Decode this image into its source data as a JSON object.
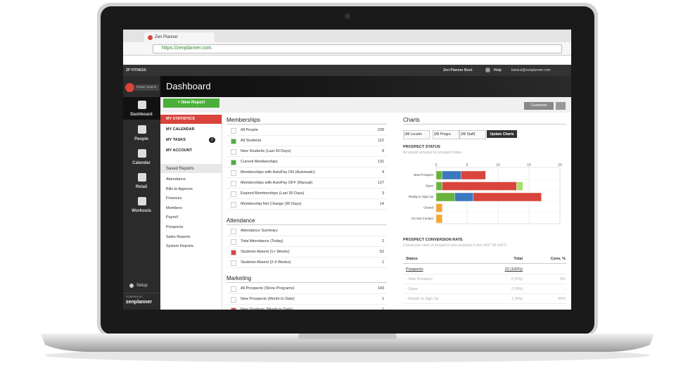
{
  "browser": {
    "tab": "Zen Planner",
    "url": "https://zenplanner.com."
  },
  "topbar": {
    "brand": "ZP FITNESS",
    "boot": "Zen Planner Boot",
    "help": "Help",
    "user": "kinnick@zenplanner.com"
  },
  "sidebar": {
    "search": "Power Search",
    "items": [
      "Dashboard",
      "People",
      "Calendar",
      "Retail",
      "Workouts"
    ],
    "setup": "Setup",
    "powered": "POWERED BY",
    "logo": "zenplanner"
  },
  "header": {
    "title": "Dashboard",
    "new_report": "+ New Report",
    "customize": "Customize"
  },
  "nav": {
    "items": [
      "MY STATISTICS",
      "MY CALENDAR",
      "MY TASKS",
      "MY ACCOUNT"
    ],
    "tasks_badge": 2,
    "saved_title": "Saved Reports",
    "saved": [
      "Attendance",
      "Bills to Approve",
      "Finances",
      "Members",
      "Payroll",
      "Prospects",
      "Sales Reports",
      "System Reports"
    ]
  },
  "sections": [
    {
      "title": "Memberships",
      "rows": [
        {
          "label": "All People",
          "count": 228
        },
        {
          "label": "All Students",
          "count": 112,
          "color": "#4caf3a"
        },
        {
          "label": "New Students (Last 30 Days)",
          "count": 8
        },
        {
          "label": "Current Memberships",
          "count": 131,
          "color": "#4caf3a"
        },
        {
          "label": "Memberships with AutoPay ON (Automatic)",
          "count": 4
        },
        {
          "label": "Memberships with AutoPay OFF (Manual)",
          "count": 127
        },
        {
          "label": "Expired Memberships (Last 30 Days)",
          "count": 3
        },
        {
          "label": "Membership Net Change (90 Days)",
          "count": 14
        }
      ]
    },
    {
      "title": "Attendance",
      "rows": [
        {
          "label": "Attendance Summary"
        },
        {
          "label": "Total Attendance (Today)",
          "count": 2
        },
        {
          "label": "Students Absent (1+ Weeks)",
          "count": 52,
          "color": "#d9443c"
        },
        {
          "label": "Students Absent (2-4 Weeks)",
          "count": 1
        }
      ]
    },
    {
      "title": "Marketing",
      "rows": [
        {
          "label": "All Prospects (Show Programs)",
          "count": 143
        },
        {
          "label": "New Prospects (Month to Date)",
          "count": 1
        },
        {
          "label": "New Students (Month to Date)",
          "count": 1,
          "color": "#d9443c"
        }
      ]
    }
  ],
  "charts": {
    "title": "Charts",
    "filters": [
      "(All Locatio",
      "(All Progra",
      "(All Staff)"
    ],
    "update": "Update Charts"
  },
  "chart_data": {
    "type": "bar",
    "orientation": "horizontal",
    "stacked": true,
    "title": "PROSPECT STATUS",
    "subtitle": "All people grouped by prospect status",
    "categories": [
      "New Prospect",
      "Open",
      "Ready to Sign Up",
      "Closed",
      "Do Not Contact"
    ],
    "series": [
      {
        "color": "#6ab23c",
        "values": [
          1,
          1,
          3,
          null,
          null
        ]
      },
      {
        "color": "#3a78c0",
        "values": [
          3,
          null,
          3,
          null,
          null
        ]
      },
      {
        "color": "#d9443c",
        "values": [
          4,
          12,
          11,
          null,
          null
        ]
      },
      {
        "color": "#a8e06a",
        "values": [
          null,
          1,
          null,
          null,
          null
        ]
      },
      {
        "color": "#f2a634",
        "values": [
          null,
          null,
          null,
          1,
          1
        ]
      }
    ],
    "xlim": [
      0,
      20
    ],
    "xticks": [
      0,
      5,
      10,
      15,
      20
    ],
    "grid": true
  },
  "conversion": {
    "title": "PROSPECT CONVERSION RATE",
    "subtitle": "Conversion rates of prospects who enquired in the LAST 90 DAYS",
    "columns": [
      "Status",
      "Total",
      "Conv. %"
    ],
    "rows": [
      [
        "Prospects",
        "23 (100%)",
        ""
      ],
      [
        "- New Prospect",
        "0 (0%)",
        "0%"
      ],
      [
        "- Open",
        "2 (9%)",
        "-"
      ],
      [
        "- Ready to Sign Up",
        "1 (4%)",
        "50%"
      ]
    ]
  }
}
